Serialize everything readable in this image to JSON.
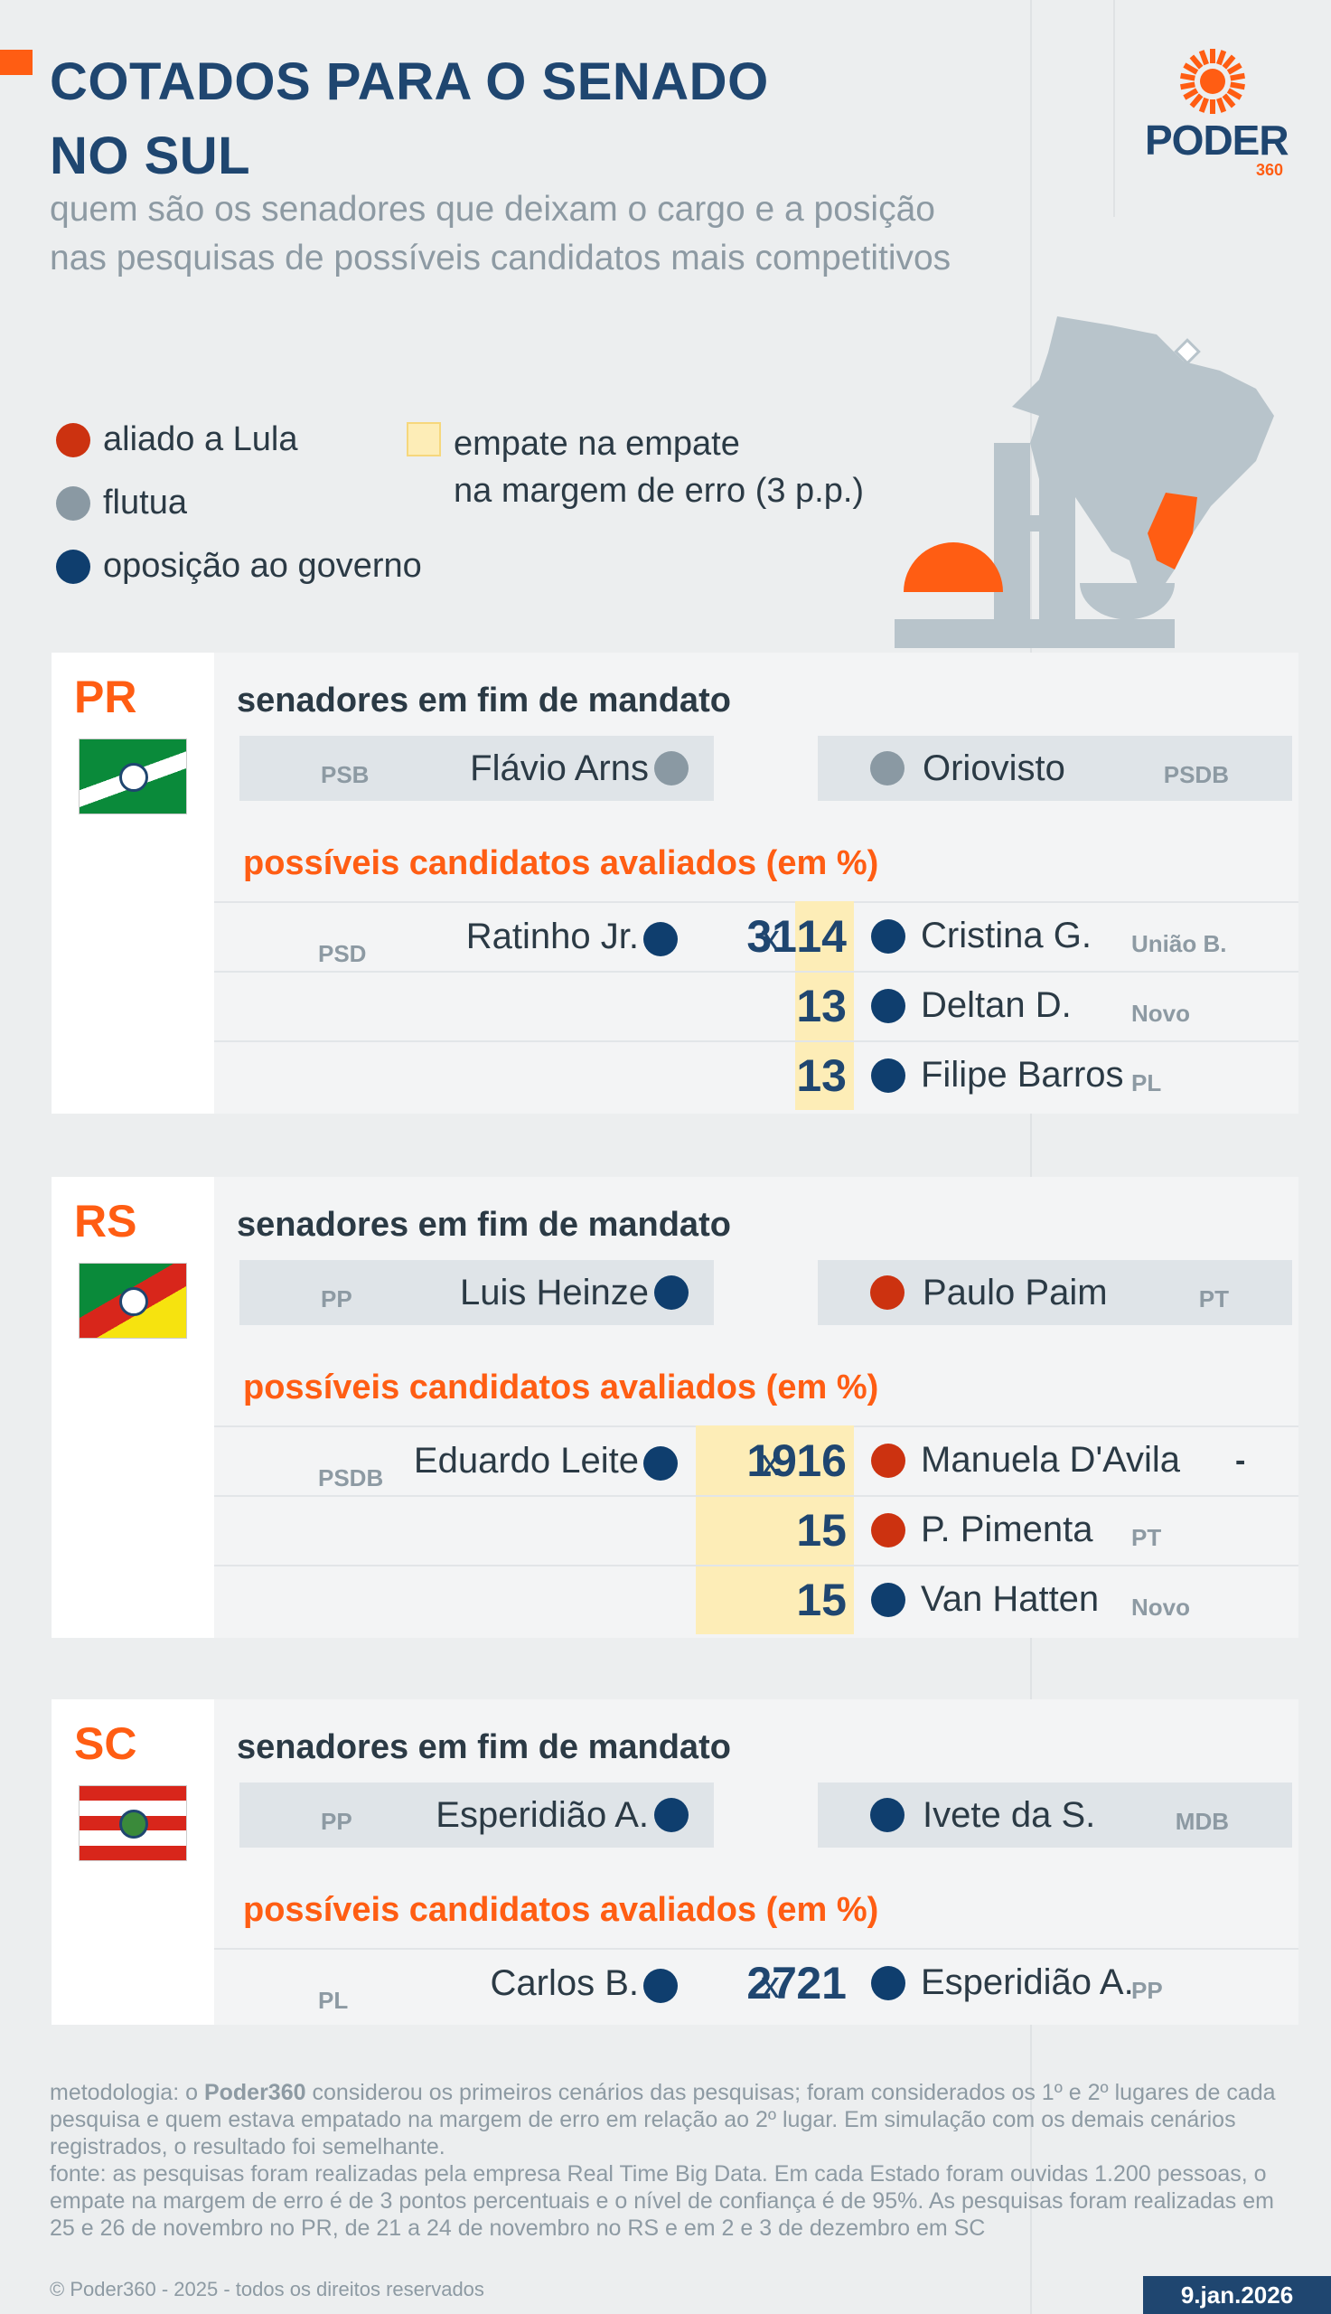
{
  "header": {
    "title_line1": "COTADOS PARA O SENADO",
    "title_line2": "NO SUL",
    "subtitle_line1": "quem são os senadores que deixam o cargo e a posição",
    "subtitle_line2": "nas pesquisas de possíveis candidatos mais competitivos",
    "logo_text": "PODER",
    "logo_number": "360"
  },
  "legend": {
    "ally": "aliado a Lula",
    "float": "flutua",
    "opposition": "oposição ao governo",
    "tie_line1": "empate na empate",
    "tie_line2": "na margem de erro (3 p.p.)"
  },
  "colors": {
    "ally": "#cc3210",
    "float": "#8a99a3",
    "opposition": "#0f3e6e",
    "tie": "#fdedb7",
    "accent": "#ff5d13",
    "title": "#1f4670"
  },
  "labels": {
    "senators_heading": "senadores em fim de mandato",
    "candidates_heading": "possíveis candidatos avaliados (em %)",
    "x": "x"
  },
  "chart_data": {
    "type": "table",
    "title": "COTADOS PARA O SENADO NO SUL",
    "states": [
      {
        "state": "PR",
        "senators": [
          {
            "name": "Flávio Arns",
            "party": "PSB",
            "alignment": "float"
          },
          {
            "name": "Oriovisto",
            "party": "PSDB",
            "alignment": "float"
          }
        ],
        "candidates": [
          {
            "name": "Ratinho Jr.",
            "party": "PSD",
            "alignment": "opposition",
            "value": 31,
            "tie": false
          },
          {
            "name": "Cristina G.",
            "party": "União B.",
            "alignment": "opposition",
            "value": 14,
            "tie": true
          },
          {
            "name": "Deltan D.",
            "party": "Novo",
            "alignment": "opposition",
            "value": 13,
            "tie": true
          },
          {
            "name": "Filipe Barros",
            "party": "PL",
            "alignment": "opposition",
            "value": 13,
            "tie": true
          }
        ]
      },
      {
        "state": "RS",
        "senators": [
          {
            "name": "Luis Heinze",
            "party": "PP",
            "alignment": "opposition"
          },
          {
            "name": "Paulo Paim",
            "party": "PT",
            "alignment": "ally"
          }
        ],
        "candidates": [
          {
            "name": "Eduardo Leite",
            "party": "PSDB",
            "alignment": "opposition",
            "value": 19,
            "tie": true
          },
          {
            "name": "Manuela D'Avila",
            "party": "-",
            "alignment": "ally",
            "value": 16,
            "tie": true
          },
          {
            "name": "P. Pimenta",
            "party": "PT",
            "alignment": "ally",
            "value": 15,
            "tie": true
          },
          {
            "name": "Van Hatten",
            "party": "Novo",
            "alignment": "opposition",
            "value": 15,
            "tie": true
          }
        ]
      },
      {
        "state": "SC",
        "senators": [
          {
            "name": "Esperidião A.",
            "party": "PP",
            "alignment": "opposition"
          },
          {
            "name": "Ivete da S.",
            "party": "MDB",
            "alignment": "opposition"
          }
        ],
        "candidates": [
          {
            "name": "Carlos B.",
            "party": "PL",
            "alignment": "opposition",
            "value": 27,
            "tie": false
          },
          {
            "name": "Esperidião A.",
            "party": "PP",
            "alignment": "opposition",
            "value": 21,
            "tie": false
          }
        ]
      }
    ]
  },
  "footer": {
    "methodology_prefix": "metodologia: o ",
    "methodology_brand": "Poder360",
    "methodology_rest": " considerou os primeiros cenários das pesquisas; foram considerados os 1º e 2º lugares de cada pesquisa e quem estava empatado na margem de erro em relação ao 2º lugar. Em simulação com os demais cenários registrados, o resultado foi semelhante.",
    "source": "fonte: as pesquisas foram realizadas pela empresa Real Time Big Data. Em cada Estado foram ouvidas 1.200 pessoas, o empate na margem de erro é de 3 pontos percentuais e o nível de confiança é de 95%. As pesquisas foram realizadas em 25 e 26 de novembro no PR, de 21 a 24 de novembro no RS e em 2 e 3 de dezembro em SC",
    "copyright": "© Poder360 - 2025 - todos os direitos reservados",
    "date": "9.jan.2026"
  }
}
